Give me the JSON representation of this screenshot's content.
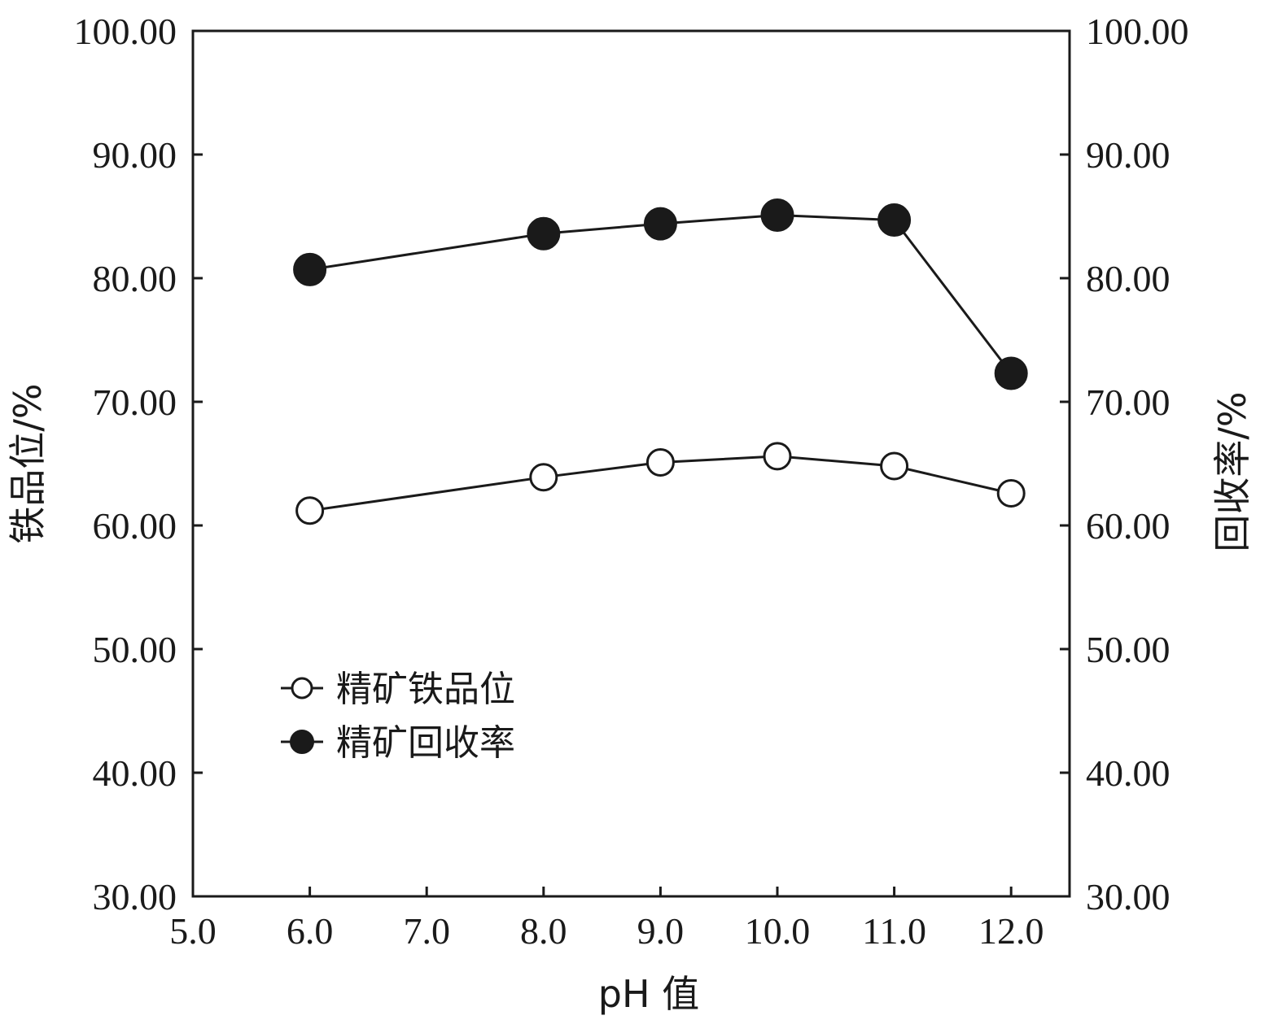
{
  "chart_data": {
    "type": "line",
    "x": [
      6.0,
      8.0,
      9.0,
      10.0,
      11.0,
      12.0
    ],
    "xlim": [
      5.0,
      12.5
    ],
    "xticks": [
      "5.0",
      "6.0",
      "7.0",
      "8.0",
      "9.0",
      "10.0",
      "11.0",
      "12.0"
    ],
    "ylim": [
      30,
      100
    ],
    "yticks": [
      "30.00",
      "40.00",
      "50.00",
      "60.00",
      "70.00",
      "80.00",
      "90.00",
      "100.00"
    ],
    "xlabel": "pH 值",
    "ylabel_left": "铁品位/%",
    "ylabel_right": "回收率/%",
    "grid": false,
    "legend_position": "lower-left",
    "series": [
      {
        "name": "精矿铁品位",
        "marker": "open-circle",
        "axis": "left",
        "values": [
          61.2,
          63.9,
          65.1,
          65.6,
          64.8,
          62.6
        ]
      },
      {
        "name": "精矿回收率",
        "marker": "filled-circle",
        "axis": "right",
        "values": [
          80.7,
          83.6,
          84.4,
          85.1,
          84.7,
          72.3
        ]
      }
    ],
    "colors": {
      "line": "#1a1a1a",
      "marker_fill_open": "#ffffff",
      "marker_fill_filled": "#1a1a1a"
    }
  }
}
